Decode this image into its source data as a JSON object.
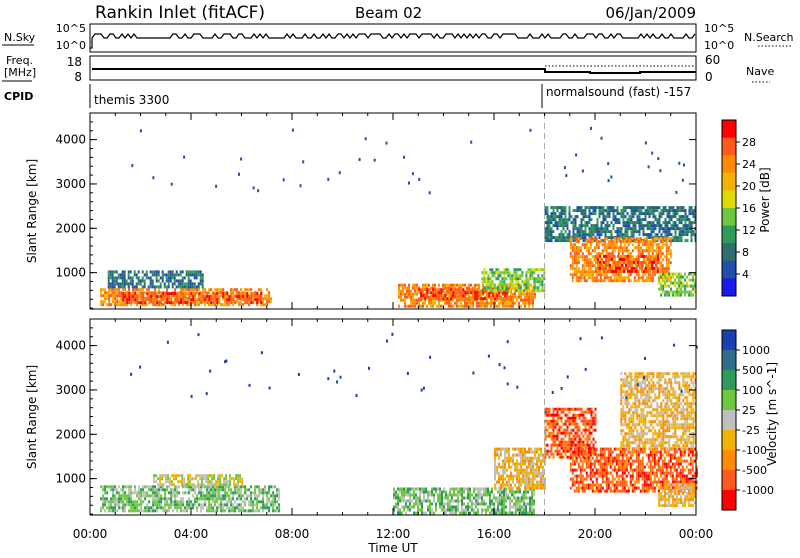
{
  "header": {
    "station": "Rankin Inlet (fitACF)",
    "beam": "Beam 02",
    "date": "06/Jan/2009"
  },
  "strip_panels": {
    "nsky_label": "N.Sky",
    "nsky_ticks": [
      "10^5",
      "10^0"
    ],
    "nsearch_label": "N.Search",
    "nsearch_ticks": [
      "10^5",
      "10^0"
    ],
    "freq_label_line1": "Freq.",
    "freq_label_line2": "[MHz]",
    "freq_ticks": [
      "18",
      "8"
    ],
    "nave_label": "Nave",
    "nave_ticks": [
      "60",
      "0"
    ],
    "cpid_label": "CPID",
    "cpid_segments": [
      "themis 3300",
      "normalsound (fast) -157"
    ]
  },
  "colorbars": {
    "power": {
      "label": "Power [dB]",
      "ticks": [
        "28",
        "24",
        "20",
        "16",
        "12",
        "8",
        "4"
      ],
      "colors": [
        "#ff0000",
        "#ff5a1e",
        "#ff8c00",
        "#f0b400",
        "#dcdc00",
        "#6ec840",
        "#2e9b5a",
        "#2e6e6e",
        "#1f4fa8",
        "#1a1aee"
      ]
    },
    "velocity": {
      "label": "Velocity [m s^-1]",
      "ticks": [
        "1000",
        "500",
        "100",
        "25",
        "-25",
        "-100",
        "-500",
        "-1000"
      ],
      "colors": [
        "#1a3fb0",
        "#2e6e8c",
        "#2e9b5a",
        "#6ec840",
        "#bfbfbf",
        "#f0b400",
        "#ff8c00",
        "#ff5a1e",
        "#ff0000"
      ]
    }
  },
  "chart_data": [
    {
      "type": "heatmap",
      "name": "power",
      "xlabel": "Time UT",
      "ylabel": "Slant Range [km]",
      "xlim": [
        0,
        24
      ],
      "ylim": [
        180,
        4600
      ],
      "y_ticks": [
        1000,
        2000,
        3000,
        4000
      ],
      "x_tick_labels": [
        "00:00",
        "04:00",
        "08:00",
        "12:00",
        "16:00",
        "20:00",
        "00:00"
      ],
      "mode_change_time": 18.0,
      "regions": [
        {
          "t": [
            0.4,
            7.2
          ],
          "r": [
            250,
            650
          ],
          "value": 24
        },
        {
          "t": [
            1.2,
            6.8
          ],
          "r": [
            320,
            560
          ],
          "value": 28
        },
        {
          "t": [
            0.7,
            4.5
          ],
          "r": [
            650,
            1050
          ],
          "value": 8
        },
        {
          "t": [
            12.2,
            17.6
          ],
          "r": [
            250,
            750
          ],
          "value": 22
        },
        {
          "t": [
            13.0,
            16.5
          ],
          "r": [
            400,
            650
          ],
          "value": 28
        },
        {
          "t": [
            15.5,
            18.0
          ],
          "r": [
            600,
            1100
          ],
          "value": 12
        },
        {
          "t": [
            18.0,
            24.0
          ],
          "r": [
            1700,
            2500
          ],
          "value": 8
        },
        {
          "t": [
            19.0,
            23.0
          ],
          "r": [
            800,
            1800
          ],
          "value": 24
        },
        {
          "t": [
            20.0,
            22.5
          ],
          "r": [
            1000,
            1400
          ],
          "value": 28
        },
        {
          "t": [
            22.5,
            24.0
          ],
          "r": [
            500,
            1000
          ],
          "value": 12
        }
      ]
    },
    {
      "type": "heatmap",
      "name": "velocity",
      "xlabel": "Time UT",
      "ylabel": "Slant Range [km]",
      "xlim": [
        0,
        24
      ],
      "ylim": [
        180,
        4600
      ],
      "y_ticks": [
        1000,
        2000,
        3000,
        4000
      ],
      "x_tick_labels": [
        "00:00",
        "04:00",
        "08:00",
        "12:00",
        "16:00",
        "20:00",
        "00:00"
      ],
      "mode_change_time": 18.0,
      "regions": [
        {
          "t": [
            0.4,
            7.5
          ],
          "r": [
            250,
            850
          ],
          "value": 100
        },
        {
          "t": [
            2.5,
            6.0
          ],
          "r": [
            850,
            1100
          ],
          "value": 0
        },
        {
          "t": [
            12.0,
            17.6
          ],
          "r": [
            250,
            800
          ],
          "value": 100
        },
        {
          "t": [
            16.0,
            18.0
          ],
          "r": [
            800,
            1700
          ],
          "value": -100
        },
        {
          "t": [
            18.0,
            20.0
          ],
          "r": [
            1500,
            2600
          ],
          "value": -500
        },
        {
          "t": [
            19.0,
            24.0
          ],
          "r": [
            700,
            1700
          ],
          "value": -500
        },
        {
          "t": [
            21.0,
            24.0
          ],
          "r": [
            1700,
            3400
          ],
          "value": -100
        },
        {
          "t": [
            22.5,
            24.0
          ],
          "r": [
            400,
            900
          ],
          "value": -100
        }
      ]
    }
  ]
}
